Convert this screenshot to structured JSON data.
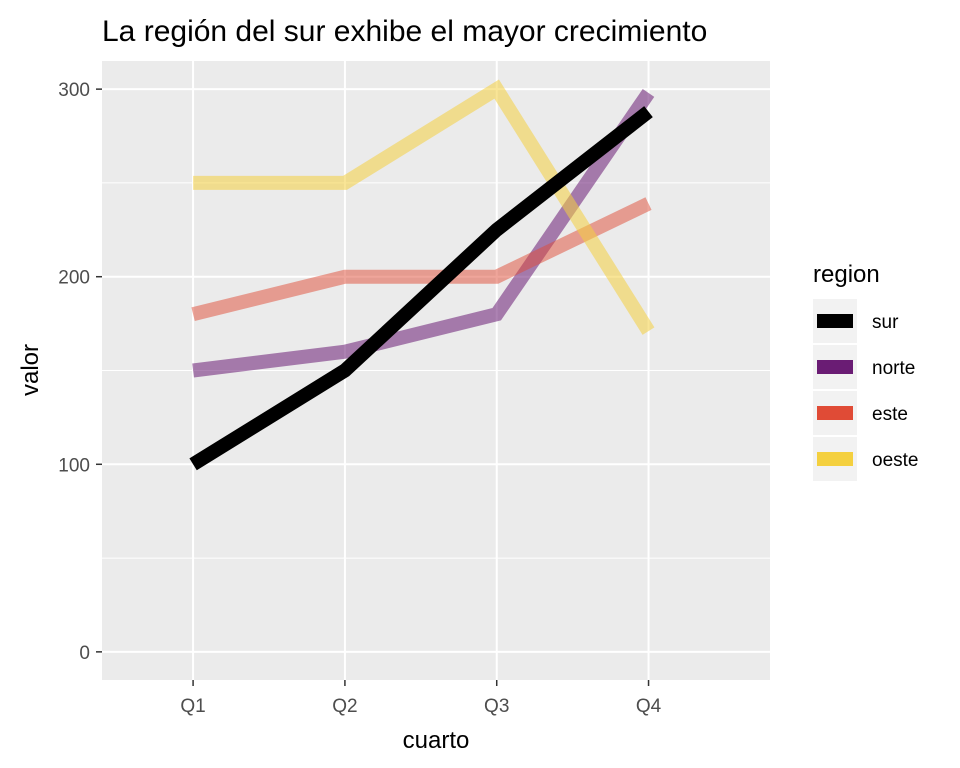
{
  "chart_data": {
    "type": "line",
    "title": "La región del sur exhibe el mayor crecimiento",
    "xlabel": "cuarto",
    "ylabel": "valor",
    "categories": [
      "Q1",
      "Q2",
      "Q3",
      "Q4"
    ],
    "ylim": [
      -15,
      315
    ],
    "yticks": [
      0,
      100,
      200,
      300
    ],
    "grid": true,
    "legend_title": "region",
    "legend_position": "right",
    "series": [
      {
        "name": "sur",
        "values": [
          100,
          150,
          225,
          288
        ],
        "color": "#000000",
        "opacity": 1.0
      },
      {
        "name": "norte",
        "values": [
          150,
          160,
          180,
          298
        ],
        "color": "#6A1C74",
        "opacity": 0.55
      },
      {
        "name": "este",
        "values": [
          180,
          200,
          200,
          239
        ],
        "color": "#E04B36",
        "opacity": 0.5
      },
      {
        "name": "oeste",
        "values": [
          250,
          250,
          300,
          171
        ],
        "color": "#F4D03F",
        "opacity": 0.55
      }
    ],
    "draw_order": [
      "norte",
      "este",
      "oeste",
      "sur"
    ]
  }
}
